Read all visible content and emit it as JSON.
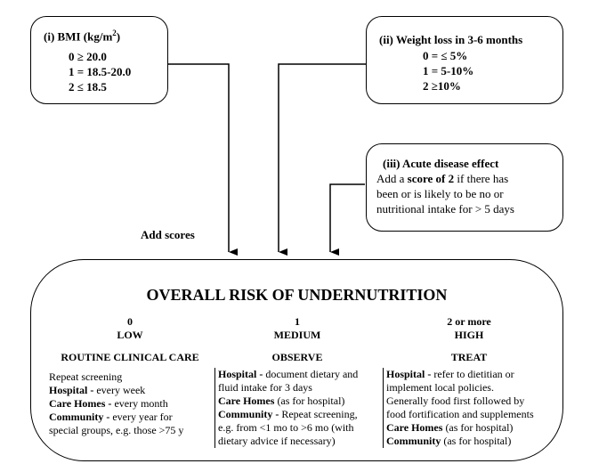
{
  "bmi": {
    "heading_prefix": "(i)  BMI (kg/m",
    "heading_sup": "2",
    "heading_suffix": ")",
    "lines": [
      "0 ≥ 20.0",
      "1 = 18.5-20.0",
      "2 ≤ 18.5"
    ]
  },
  "weight": {
    "heading": "(ii) Weight loss in 3-6 months",
    "lines": [
      "0 = ≤ 5%",
      "1 = 5-10%",
      "2 ≥10%"
    ]
  },
  "acute": {
    "heading": "(iii)  Acute disease effect",
    "line1_pre": "Add a ",
    "line1_bold": "score of 2",
    "line1_post": " if there has",
    "line2": "been or is likely to be no or",
    "line3": "nutritional intake for > 5 days"
  },
  "add_scores": "Add scores",
  "overall": {
    "title": "OVERALL RISK OF UNDERNUTRITION",
    "columns": [
      {
        "score": "0",
        "level": "LOW",
        "action": "ROUTINE CLINICAL CARE",
        "rows": [
          {
            "bold": "",
            "text": "Repeat screening"
          },
          {
            "bold": "Hospital - ",
            "text": "every week"
          },
          {
            "bold": "Care Homes - ",
            "text": "every month"
          },
          {
            "bold": "Community - ",
            "text": "every year for"
          },
          {
            "bold": "",
            "text": "special groups, e.g. those >75 y"
          }
        ]
      },
      {
        "score": "1",
        "level": "MEDIUM",
        "action": "OBSERVE",
        "rows": [
          {
            "bold": "Hospital - ",
            "text": "document dietary and"
          },
          {
            "bold": "",
            "text": "fluid intake for 3 days"
          },
          {
            "bold": "Care Homes ",
            "text": "(as for hospital)"
          },
          {
            "bold": "Community - ",
            "text": "Repeat screening,"
          },
          {
            "bold": "",
            "text": "e.g. from <1 mo to >6 mo (with"
          },
          {
            "bold": "",
            "text": "dietary advice if necessary)"
          }
        ]
      },
      {
        "score": "2 or more",
        "level": "HIGH",
        "action": "TREAT",
        "rows": [
          {
            "bold": "Hospital - ",
            "text": "refer to dietitian or"
          },
          {
            "bold": "",
            "text": "implement local policies."
          },
          {
            "bold": "",
            "text": "Generally food first followed by"
          },
          {
            "bold": "",
            "text": "food fortification and supplements"
          },
          {
            "bold": "Care Homes ",
            "text": "(as for hospital)"
          },
          {
            "bold": "Community ",
            "text": "(as for hospital)"
          }
        ]
      }
    ]
  }
}
